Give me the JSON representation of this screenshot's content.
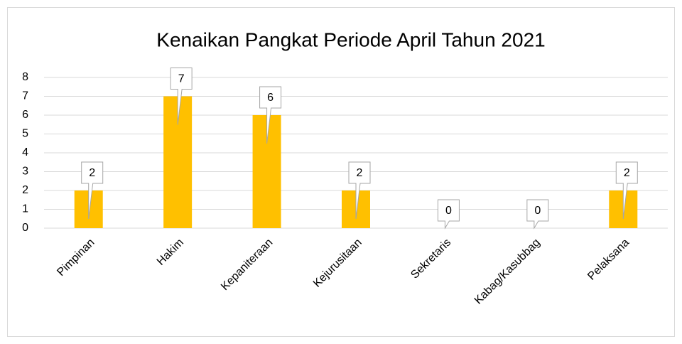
{
  "chart_data": {
    "type": "bar",
    "title": "Kenaikan Pangkat Periode April Tahun 2021",
    "categories": [
      "Pimpinan",
      "Hakim",
      "Kepaniteraan",
      "Kejurusitaan",
      "Sekretaris",
      "Kabag/Kasubbag",
      "Pelaksana"
    ],
    "values": [
      2,
      7,
      6,
      2,
      0,
      0,
      2
    ],
    "color": "#ffc000",
    "ylim": [
      0,
      8
    ],
    "yticks": [
      0,
      1,
      2,
      3,
      4,
      5,
      6,
      7,
      8
    ],
    "grid": true
  }
}
